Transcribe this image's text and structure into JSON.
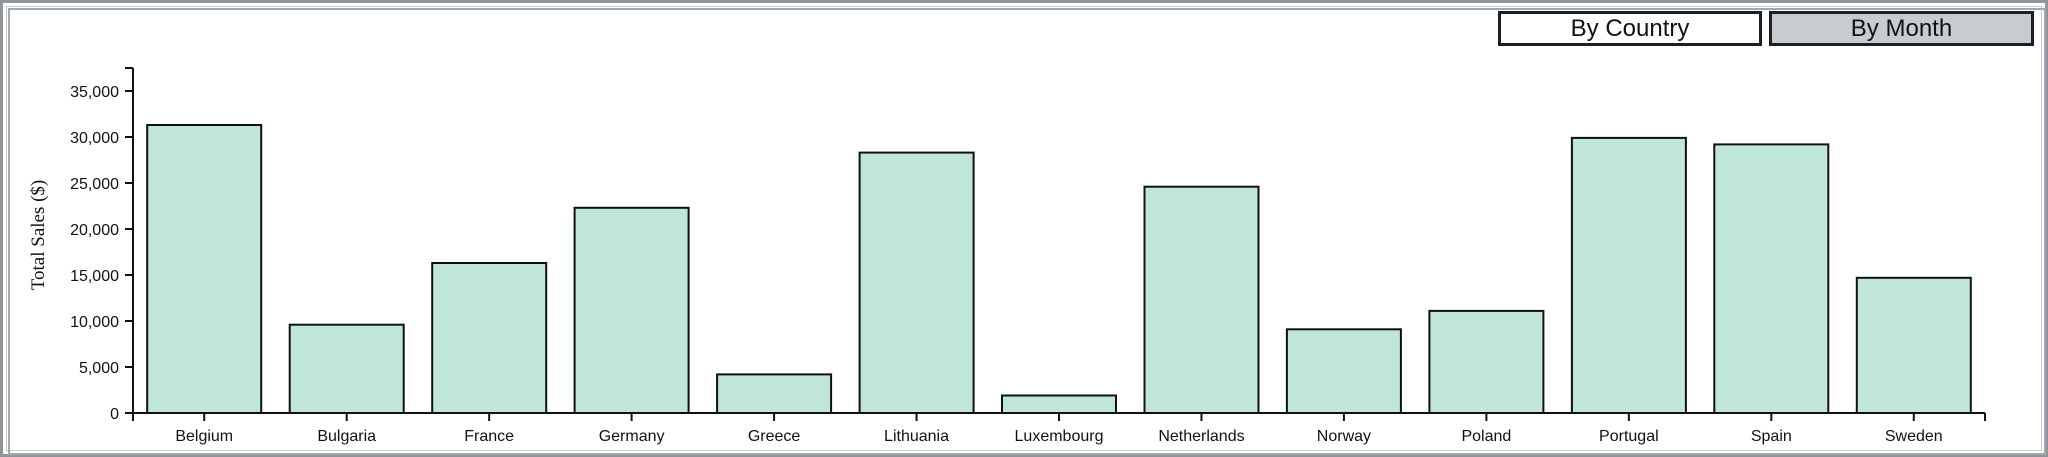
{
  "controls": {
    "by_country_label": "By Country",
    "by_month_label": "By Month"
  },
  "colors": {
    "bar_fill": "#c0e6d8",
    "bar_stroke": "#111111",
    "axis": "#111111",
    "selected_button": "#ffffff",
    "unselected_button": "#c8ccd0"
  },
  "chart_data": {
    "type": "bar",
    "title": "",
    "xlabel": "",
    "ylabel": "Total Sales ($)",
    "categories": [
      "Belgium",
      "Bulgaria",
      "France",
      "Germany",
      "Greece",
      "Lithuania",
      "Luxembourg",
      "Netherlands",
      "Norway",
      "Poland",
      "Portugal",
      "Spain",
      "Sweden"
    ],
    "values": [
      31300,
      9600,
      16300,
      22300,
      4200,
      28300,
      1900,
      24600,
      9100,
      11100,
      29900,
      29200,
      14700
    ],
    "ylim": [
      0,
      37500
    ],
    "yticks": [
      0,
      5000,
      10000,
      15000,
      20000,
      25000,
      30000,
      35000
    ],
    "ytick_labels": [
      "0",
      "5,000",
      "10,000",
      "15,000",
      "20,000",
      "25,000",
      "30,000",
      "35,000"
    ],
    "grid": false,
    "legend": "none"
  }
}
